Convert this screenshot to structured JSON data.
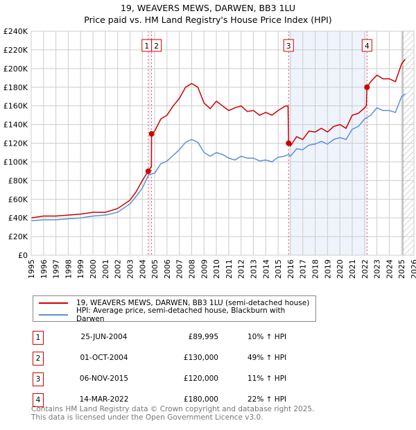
{
  "title": "19, WEAVERS MEWS, DARWEN, BB3 1LU",
  "subtitle": "Price paid vs. HM Land Registry's House Price Index (HPI)",
  "chart_data": {
    "type": "line",
    "title": "19, WEAVERS MEWS, DARWEN, BB3 1LU — Price paid vs. HM Land Registry's House Price Index (HPI)",
    "xlim": [
      1995,
      2026
    ],
    "ylim": [
      0,
      240000
    ],
    "x_ticks": [
      "1995",
      "1996",
      "1997",
      "1998",
      "1999",
      "2000",
      "2001",
      "2002",
      "2003",
      "2004",
      "2005",
      "2006",
      "2007",
      "2008",
      "2009",
      "2010",
      "2011",
      "2012",
      "2013",
      "2014",
      "2015",
      "2016",
      "2017",
      "2018",
      "2019",
      "2020",
      "2021",
      "2022",
      "2023",
      "2024",
      "2025",
      "2026"
    ],
    "y_ticks": [
      "£0",
      "£20K",
      "£40K",
      "£60K",
      "£80K",
      "£100K",
      "£120K",
      "£140K",
      "£160K",
      "£180K",
      "£200K",
      "£220K",
      "£240K"
    ],
    "grid": true,
    "colors": {
      "property": "#cc0000",
      "hpi": "#5b8fd4",
      "shade": "#eef3fc"
    },
    "series": [
      {
        "name": "19, WEAVERS MEWS, DARWEN, BB3 1LU (semi-detached house)",
        "points": [
          [
            1995,
            40
          ],
          [
            1996,
            42
          ],
          [
            1997,
            42
          ],
          [
            1998,
            43
          ],
          [
            1999,
            44
          ],
          [
            2000,
            46
          ],
          [
            2001,
            46
          ],
          [
            2002,
            50
          ],
          [
            2003,
            59
          ],
          [
            2003.5,
            68
          ],
          [
            2004,
            80
          ],
          [
            2004.48,
            90
          ],
          [
            2004.74,
            95
          ],
          [
            2004.75,
            130
          ],
          [
            2005,
            133
          ],
          [
            2005.5,
            146
          ],
          [
            2006,
            150
          ],
          [
            2006.5,
            160
          ],
          [
            2007,
            168
          ],
          [
            2007.5,
            180
          ],
          [
            2008,
            184
          ],
          [
            2008.5,
            180
          ],
          [
            2009,
            163
          ],
          [
            2009.5,
            157
          ],
          [
            2010,
            165
          ],
          [
            2010.5,
            160
          ],
          [
            2011,
            155
          ],
          [
            2011.5,
            158
          ],
          [
            2012,
            160
          ],
          [
            2012.5,
            154
          ],
          [
            2013,
            155
          ],
          [
            2013.5,
            150
          ],
          [
            2014,
            153
          ],
          [
            2014.5,
            150
          ],
          [
            2015,
            155
          ],
          [
            2015.6,
            160
          ],
          [
            2015.8,
            160
          ],
          [
            2015.85,
            120
          ],
          [
            2016,
            117
          ],
          [
            2016.5,
            127
          ],
          [
            2017,
            124
          ],
          [
            2017.5,
            133
          ],
          [
            2018,
            132
          ],
          [
            2018.5,
            136
          ],
          [
            2019,
            132
          ],
          [
            2019.5,
            138
          ],
          [
            2020,
            140
          ],
          [
            2020.5,
            136
          ],
          [
            2021,
            150
          ],
          [
            2021.5,
            152
          ],
          [
            2022,
            158
          ],
          [
            2022.15,
            160
          ],
          [
            2022.2,
            180
          ],
          [
            2022.5,
            186
          ],
          [
            2023,
            193
          ],
          [
            2023.5,
            189
          ],
          [
            2024,
            189
          ],
          [
            2024.5,
            186
          ],
          [
            2025,
            205
          ],
          [
            2025.3,
            210
          ]
        ]
      },
      {
        "name": "HPI: Average price, semi-detached house, Blackburn with Darwen",
        "points": [
          [
            1995,
            37
          ],
          [
            1996,
            38
          ],
          [
            1997,
            38
          ],
          [
            1998,
            39
          ],
          [
            1999,
            40
          ],
          [
            2000,
            42
          ],
          [
            2001,
            43
          ],
          [
            2002,
            46
          ],
          [
            2003,
            55
          ],
          [
            2003.5,
            63
          ],
          [
            2004,
            72
          ],
          [
            2004.5,
            86
          ],
          [
            2005,
            88
          ],
          [
            2005.5,
            98
          ],
          [
            2006,
            101
          ],
          [
            2006.5,
            107
          ],
          [
            2007,
            113
          ],
          [
            2007.5,
            121
          ],
          [
            2008,
            124
          ],
          [
            2008.5,
            121
          ],
          [
            2009,
            110
          ],
          [
            2009.5,
            106
          ],
          [
            2010,
            110
          ],
          [
            2010.5,
            108
          ],
          [
            2011,
            104
          ],
          [
            2011.5,
            102
          ],
          [
            2012,
            106
          ],
          [
            2012.5,
            104
          ],
          [
            2013,
            104
          ],
          [
            2013.5,
            101
          ],
          [
            2014,
            102
          ],
          [
            2014.5,
            100
          ],
          [
            2015,
            105
          ],
          [
            2015.5,
            106
          ],
          [
            2015.85,
            108
          ],
          [
            2016,
            106
          ],
          [
            2016.5,
            114
          ],
          [
            2017,
            113
          ],
          [
            2017.5,
            118
          ],
          [
            2018,
            119
          ],
          [
            2018.5,
            122
          ],
          [
            2019,
            119
          ],
          [
            2019.5,
            124
          ],
          [
            2020,
            126
          ],
          [
            2020.5,
            124
          ],
          [
            2021,
            135
          ],
          [
            2021.5,
            138
          ],
          [
            2022,
            146
          ],
          [
            2022.5,
            150
          ],
          [
            2023,
            158
          ],
          [
            2023.5,
            155
          ],
          [
            2024,
            155
          ],
          [
            2024.5,
            153
          ],
          [
            2025,
            170
          ],
          [
            2025.3,
            173
          ]
        ]
      }
    ],
    "sales": [
      {
        "label": "1",
        "x": 2004.48,
        "y": 89995
      },
      {
        "label": "2",
        "x": 2004.75,
        "y": 130000
      },
      {
        "label": "3",
        "x": 2015.85,
        "y": 120000
      },
      {
        "label": "4",
        "x": 2022.2,
        "y": 180000
      }
    ],
    "forecast_from": 2025.1
  },
  "legend": {
    "property": "19, WEAVERS MEWS, DARWEN, BB3 1LU (semi-detached house)",
    "hpi": "HPI: Average price, semi-detached house, Blackburn with Darwen"
  },
  "transactions": [
    {
      "num": "1",
      "date": "25-JUN-2004",
      "price": "£89,995",
      "hpi": "10% ↑ HPI"
    },
    {
      "num": "2",
      "date": "01-OCT-2004",
      "price": "£130,000",
      "hpi": "49% ↑ HPI"
    },
    {
      "num": "3",
      "date": "06-NOV-2015",
      "price": "£120,000",
      "hpi": "11% ↑ HPI"
    },
    {
      "num": "4",
      "date": "14-MAR-2022",
      "price": "£180,000",
      "hpi": "22% ↑ HPI"
    }
  ],
  "footer": {
    "line1": "Contains HM Land Registry data © Crown copyright and database right 2025.",
    "line2": "This data is licensed under the Open Government Licence v3.0."
  }
}
